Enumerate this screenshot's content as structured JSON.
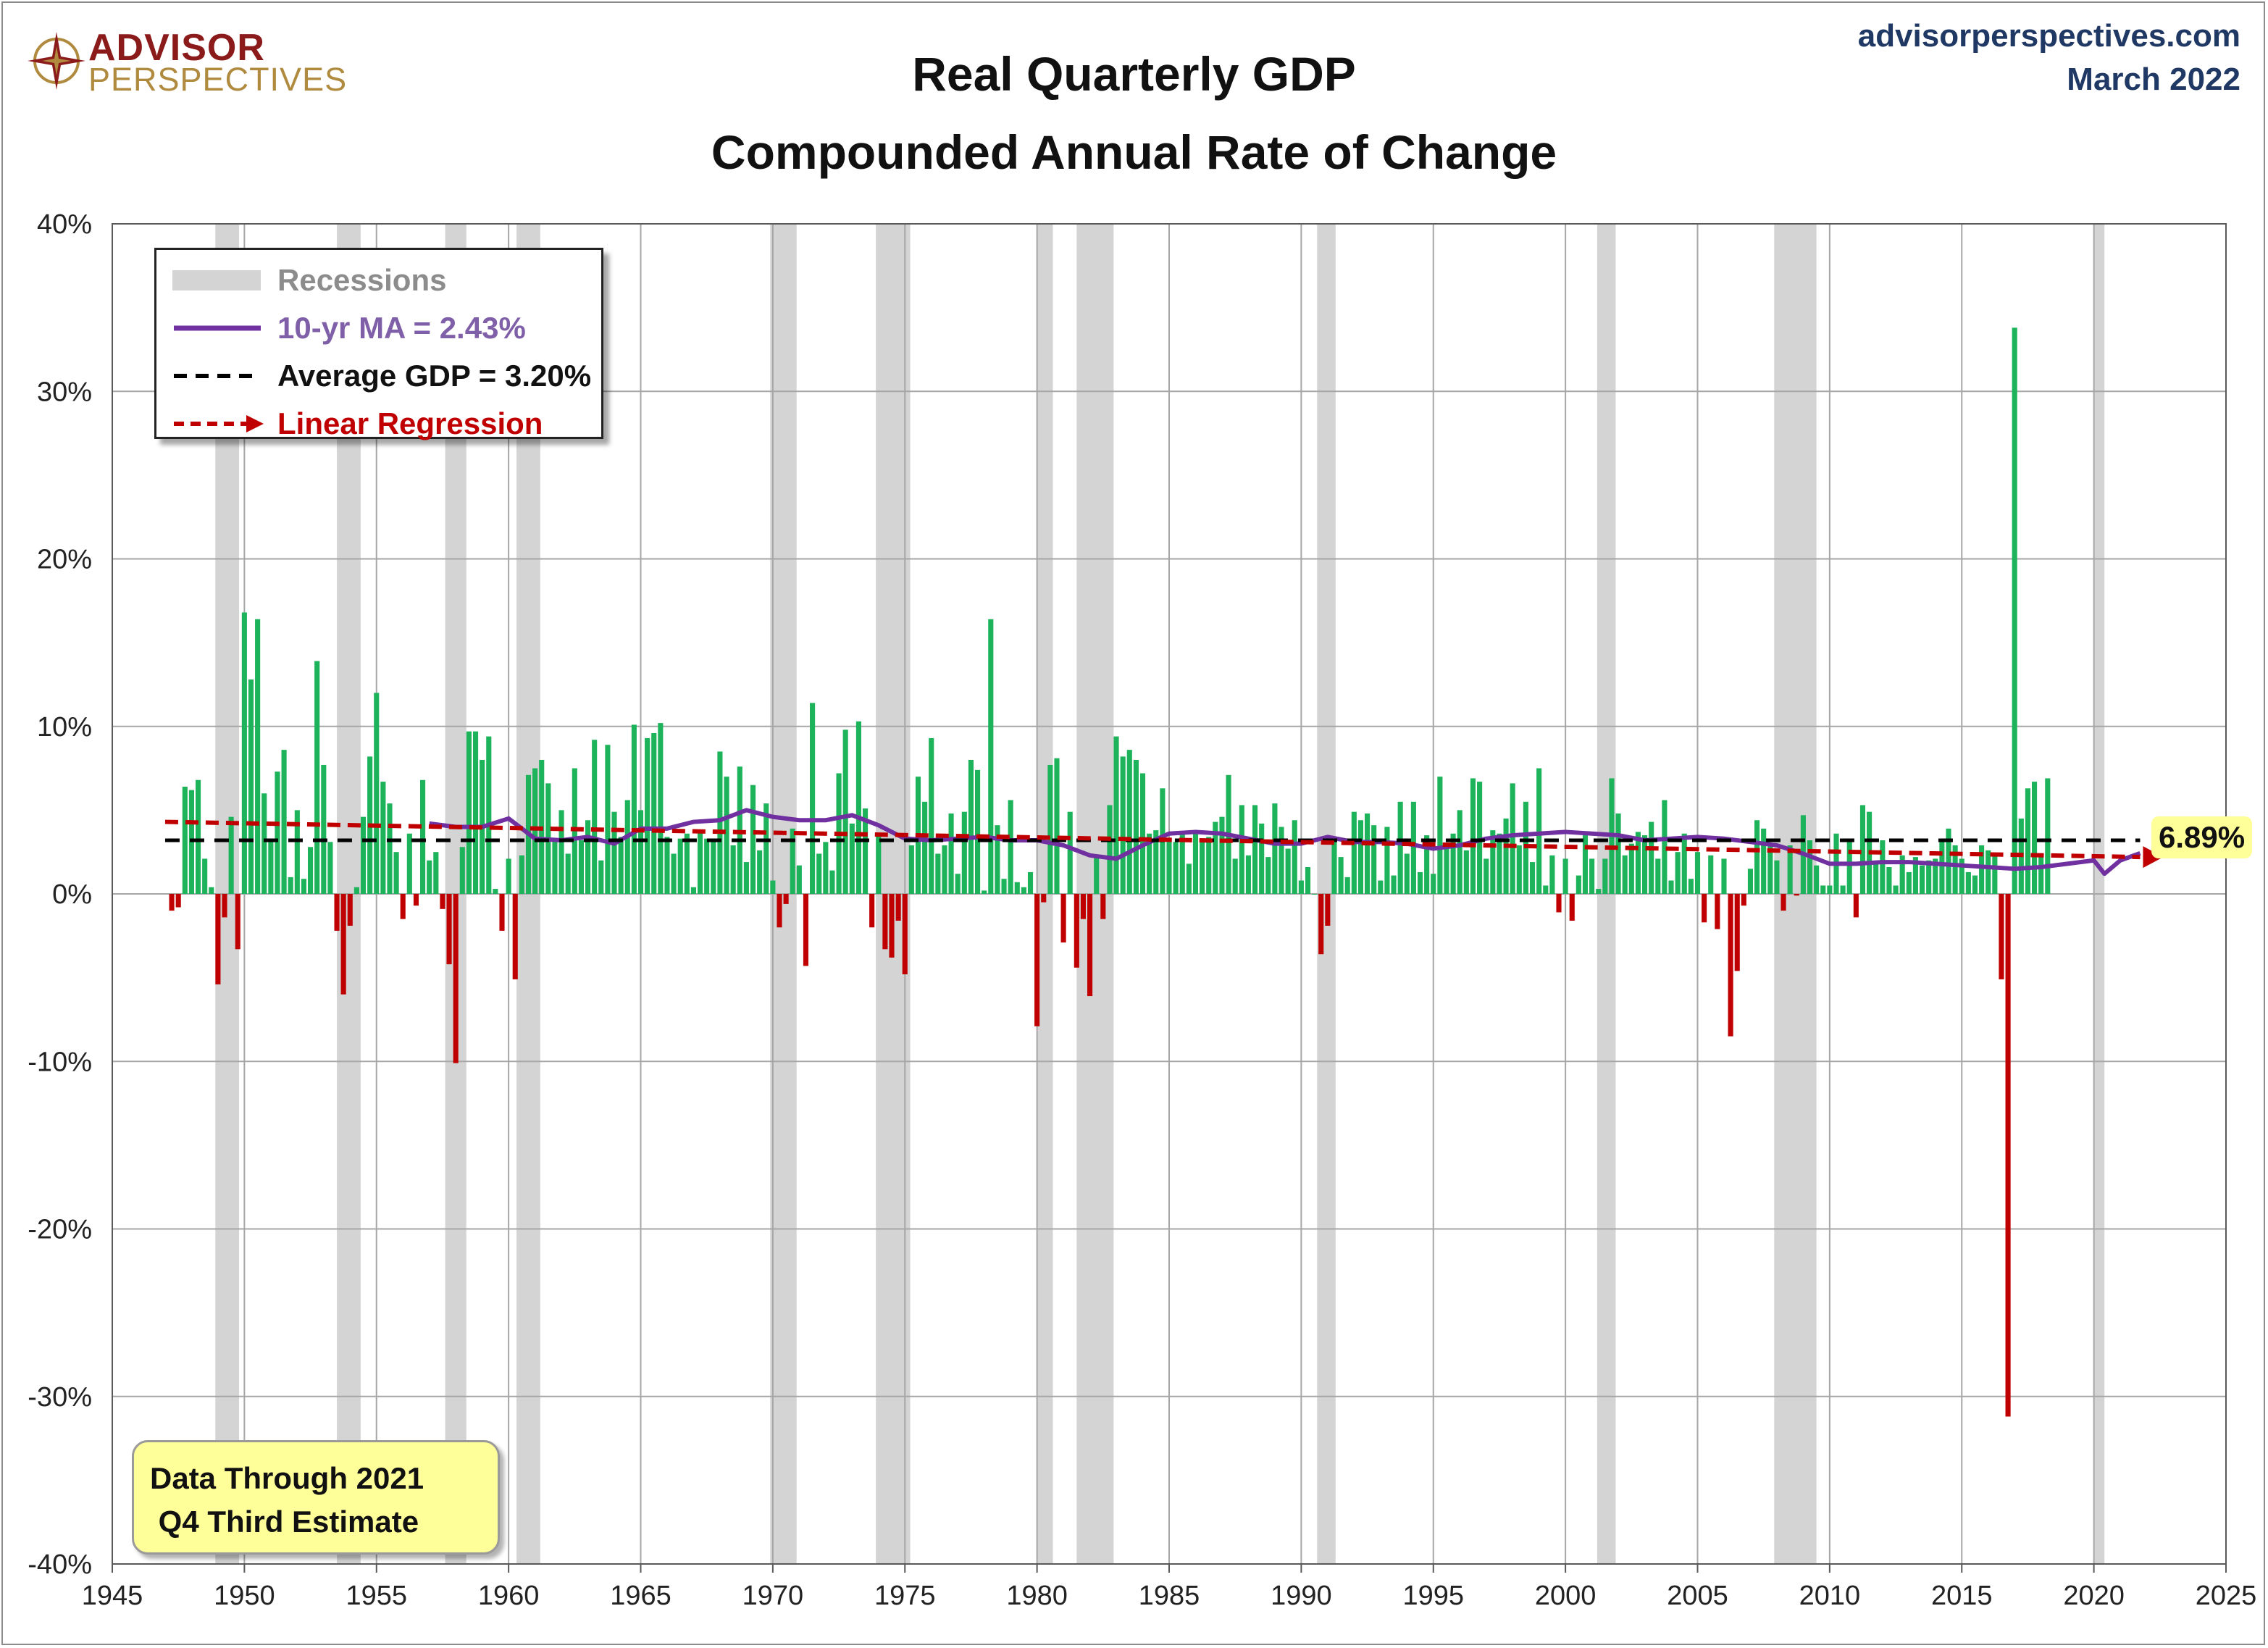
{
  "header": {
    "title_line1": "Real Quarterly GDP",
    "title_line2": "Compounded Annual Rate of Change",
    "logo_line1": "ADVISOR",
    "logo_line2": "PERSPECTIVES",
    "site": "advisorperspectives.com",
    "date": "March 2022"
  },
  "legend": {
    "recessions": "Recessions",
    "ma": "10-yr MA = 2.43%",
    "avg": "Average GDP = 3.20%",
    "regression": "Linear Regression"
  },
  "note": {
    "line1": "Data Through 2021",
    "line2": " Q4 Third Estimate"
  },
  "callout": "6.89%",
  "colors": {
    "positive": "#1db35a",
    "negative": "#c00000",
    "recession": "#d4d4d4",
    "ma": "#7030a0",
    "average": "#000000",
    "regression": "#c00000",
    "gridline": "#a6a6a6",
    "callout_bg": "#ffff99"
  },
  "chart_data": {
    "type": "bar",
    "title": "Real Quarterly GDP Compounded Annual Rate of Change",
    "xlim": [
      1945,
      2025
    ],
    "ylim": [
      -40,
      40
    ],
    "x_ticks": [
      "1945",
      "1950",
      "1955",
      "1960",
      "1965",
      "1970",
      "1975",
      "1980",
      "1985",
      "1990",
      "1995",
      "2000",
      "2005",
      "2010",
      "2015",
      "2020",
      "2025"
    ],
    "y_ticks": [
      "-40%",
      "-30%",
      "-20%",
      "-10%",
      "0%",
      "10%",
      "20%",
      "30%",
      "40%"
    ],
    "grid": true,
    "legend_position": "top-left",
    "average_gdp": 3.2,
    "ten_year_ma_latest": 2.43,
    "latest_value": 6.89,
    "recessions": [
      [
        1948.9,
        1949.8
      ],
      [
        1953.5,
        1954.4
      ],
      [
        1957.6,
        1958.4
      ],
      [
        1960.3,
        1961.2
      ],
      [
        1969.9,
        1970.9
      ],
      [
        1973.9,
        1975.2
      ],
      [
        1980.0,
        1980.6
      ],
      [
        1981.5,
        1982.9
      ],
      [
        1990.6,
        1991.3
      ],
      [
        2001.2,
        2001.9
      ],
      [
        2007.9,
        2009.5
      ],
      [
        2020.0,
        2020.4
      ]
    ],
    "series": [
      {
        "name": "Real GDP",
        "start": 1947.25,
        "step": 0.25,
        "values": [
          -1.0,
          -0.8,
          6.4,
          6.2,
          6.8,
          2.1,
          0.4,
          -5.4,
          -1.4,
          4.6,
          -3.3,
          16.8,
          12.8,
          16.4,
          6.0,
          3.2,
          7.3,
          8.6,
          1.0,
          5.0,
          0.9,
          2.8,
          13.9,
          7.7,
          3.1,
          -2.2,
          -6.0,
          -1.9,
          0.4,
          4.6,
          8.2,
          12.0,
          6.7,
          5.4,
          2.5,
          -1.5,
          3.6,
          -0.7,
          6.8,
          2.0,
          2.5,
          -0.9,
          -4.2,
          -10.1,
          2.8,
          9.7,
          9.7,
          8.0,
          9.4,
          0.3,
          -2.2,
          2.1,
          -5.1,
          2.3,
          7.1,
          7.5,
          8.0,
          6.6,
          3.3,
          5.0,
          2.4,
          7.5,
          3.2,
          4.4,
          9.2,
          2.0,
          8.9,
          4.9,
          3.4,
          5.6,
          10.1,
          5.0,
          9.3,
          9.6,
          10.2,
          3.4,
          2.4,
          3.3,
          3.6,
          0.4,
          3.7,
          3.3,
          3.2,
          8.5,
          7.0,
          2.9,
          7.6,
          1.9,
          6.5,
          2.6,
          5.4,
          0.8,
          -2.0,
          -0.6,
          3.9,
          1.7,
          -4.3,
          11.4,
          2.4,
          3.1,
          1.4,
          7.2,
          9.8,
          4.2,
          10.3,
          5.1,
          -2.0,
          3.6,
          -3.3,
          -3.8,
          -1.6,
          -4.8,
          2.9,
          7.0,
          5.5,
          9.3,
          2.4,
          2.9,
          4.8,
          1.2,
          4.9,
          8.0,
          7.4,
          0.2,
          16.4,
          4.1,
          0.9,
          5.6,
          0.7,
          0.4,
          1.3,
          -7.9,
          -0.5,
          7.7,
          8.1,
          -2.9,
          4.9,
          -4.4,
          -1.5,
          -6.1,
          2.2,
          -1.5,
          5.3,
          9.4,
          8.2,
          8.6,
          8.0,
          7.2,
          3.6,
          3.8,
          6.3,
          3.3,
          3.1,
          3.6,
          1.8,
          3.8,
          3.1,
          3.4,
          4.3,
          4.6,
          7.1,
          2.1,
          5.3,
          2.3,
          5.3,
          4.2,
          2.2,
          5.4,
          4.0,
          2.7,
          4.4,
          0.8,
          1.6,
          0.0,
          -3.6,
          -1.9,
          3.1,
          2.2,
          1.0,
          4.9,
          4.4,
          4.8,
          4.1,
          0.8,
          4.0,
          1.1,
          5.5,
          2.4,
          5.5,
          1.3,
          3.5,
          1.2,
          7.0,
          2.7,
          3.6,
          5.0,
          2.6,
          6.9,
          6.7,
          2.1,
          3.8,
          3.6,
          4.5,
          6.6,
          2.9,
          5.5,
          1.9,
          7.5,
          0.5,
          2.3,
          -1.1,
          2.1,
          -1.6,
          1.1,
          3.5,
          2.1,
          0.3,
          2.1,
          6.9,
          4.8,
          2.3,
          3.0,
          3.7,
          3.5,
          4.3,
          2.1,
          5.6,
          0.8,
          2.5,
          3.6,
          0.9,
          2.5,
          -1.7,
          2.3,
          -2.1,
          2.1,
          -8.5,
          -4.6,
          -0.7,
          1.5,
          4.4,
          3.9,
          3.0,
          2.0,
          -1.0,
          2.9,
          -0.1,
          4.7,
          3.2,
          1.7,
          0.5,
          0.5,
          3.6,
          0.5,
          3.2,
          -1.4,
          5.3,
          4.9,
          1.9,
          3.2,
          1.6,
          0.5,
          2.3,
          1.3,
          2.2,
          1.7,
          2.0,
          2.1,
          3.2,
          3.9,
          2.9,
          2.1,
          1.3,
          1.1,
          2.9,
          2.6,
          2.4,
          -5.1,
          -31.2,
          33.8,
          4.5,
          6.3,
          6.7,
          2.3,
          6.9
        ]
      },
      {
        "name": "10-yr MA = 2.43%",
        "x": [
          1957.0,
          1958.0,
          1959.0,
          1960.0,
          1961.0,
          1962.0,
          1963.0,
          1964.0,
          1965.0,
          1966.0,
          1967.0,
          1968.0,
          1969.0,
          1970.0,
          1971.0,
          1972.0,
          1973.0,
          1974.0,
          1975.0,
          1976.0,
          1977.0,
          1978.0,
          1979.0,
          1980.0,
          1981.0,
          1982.0,
          1983.0,
          1984.0,
          1985.0,
          1986.0,
          1987.0,
          1988.0,
          1989.0,
          1990.0,
          1991.0,
          1992.0,
          1993.0,
          1994.0,
          1995.0,
          1996.0,
          1997.0,
          1998.0,
          1999.0,
          2000.0,
          2001.0,
          2002.0,
          2003.0,
          2004.0,
          2005.0,
          2006.0,
          2007.0,
          2008.0,
          2009.0,
          2010.0,
          2011.0,
          2012.0,
          2013.0,
          2014.0,
          2015.0,
          2016.0,
          2017.0,
          2018.0,
          2019.0,
          2020.0,
          2020.4,
          2021.0,
          2021.75
        ],
        "values": [
          4.2,
          4.0,
          4.0,
          4.5,
          3.3,
          3.2,
          3.4,
          3.0,
          3.9,
          3.9,
          4.3,
          4.4,
          5.0,
          4.6,
          4.4,
          4.4,
          4.7,
          4.1,
          3.3,
          3.2,
          3.3,
          3.4,
          3.2,
          3.2,
          2.9,
          2.3,
          2.1,
          2.9,
          3.6,
          3.7,
          3.6,
          3.3,
          3.0,
          3.0,
          3.4,
          3.1,
          3.1,
          3.0,
          2.7,
          2.9,
          3.3,
          3.5,
          3.6,
          3.7,
          3.6,
          3.5,
          3.2,
          3.3,
          3.4,
          3.3,
          3.1,
          2.9,
          2.4,
          1.8,
          1.8,
          1.9,
          1.9,
          1.8,
          1.7,
          1.6,
          1.5,
          1.6,
          1.8,
          2.0,
          1.2,
          2.0,
          2.43
        ]
      },
      {
        "name": "Average GDP = 3.20%",
        "x": [
          1947.0,
          2021.75
        ],
        "values": [
          3.2,
          3.2
        ]
      },
      {
        "name": "Linear Regression",
        "x": [
          1947.0,
          2021.75
        ],
        "values": [
          4.3,
          2.2
        ]
      }
    ]
  }
}
